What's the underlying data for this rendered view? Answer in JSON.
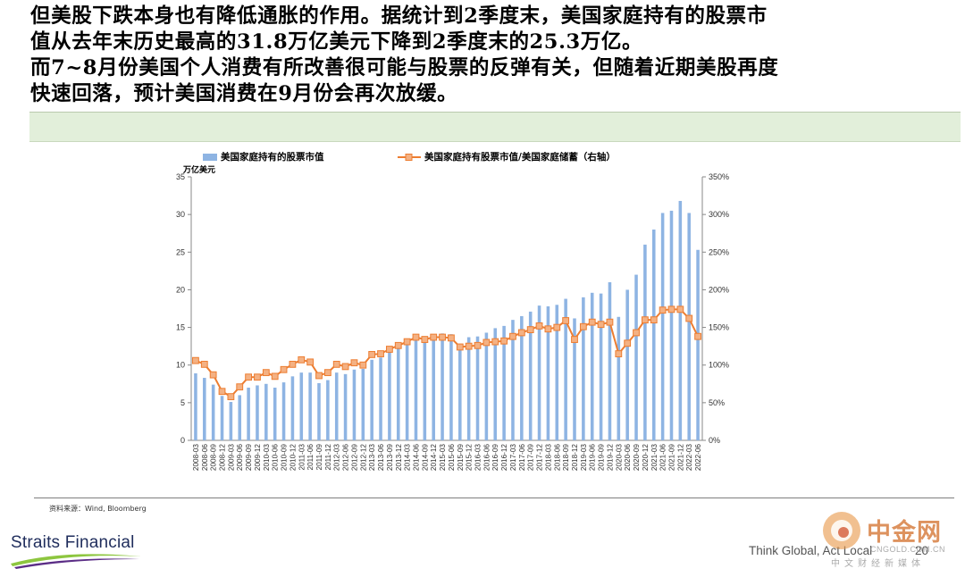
{
  "headline": [
    "但美股下跌本身也有降低通胀的作用。据统计到2季度末，美国家庭持有的股票市",
    "值从去年末历史最高的31.8万亿美元下降到2季度末的25.3万亿。",
    "而7~8月份美国个人消费有所改善很可能与股票的反弹有关，但随着近期美股再度",
    "快速回落，预计美国消费在9月份会再次放缓。"
  ],
  "source": "资料来源：Wind, Bloomberg",
  "footer": {
    "logo": "Straits Financial",
    "slogan": "Think Global, Act Local",
    "page": "20"
  },
  "watermark": {
    "name": "中金网",
    "domain": "CNGOLD.COM.CN",
    "tagline": "中文财经新媒体"
  },
  "colors": {
    "band": "#e2efda",
    "bar": "#8eb4e3",
    "line": "#ed7d31",
    "marker_fill": "#f4b183",
    "brand_navy": "#1f2d5c",
    "brand_green": "#8dc63f",
    "watermark": "#e07a30"
  },
  "chart_data": {
    "type": "bar",
    "title": "",
    "y_unit_label": "万亿美元",
    "legend_position": "top",
    "grid": false,
    "ylim": [
      0,
      35
    ],
    "y_ticks": [
      0,
      5,
      10,
      15,
      20,
      25,
      30,
      35
    ],
    "y2lim": [
      0,
      350
    ],
    "y2_ticks": [
      "0%",
      "50%",
      "100%",
      "150%",
      "200%",
      "250%",
      "300%",
      "350%"
    ],
    "categories": [
      "2008-03",
      "2008-06",
      "2008-09",
      "2008-12",
      "2009-03",
      "2009-06",
      "2009-09",
      "2009-12",
      "2010-03",
      "2010-06",
      "2010-09",
      "2010-12",
      "2011-03",
      "2011-06",
      "2011-09",
      "2011-12",
      "2012-03",
      "2012-06",
      "2012-09",
      "2012-12",
      "2013-03",
      "2013-06",
      "2013-09",
      "2013-12",
      "2014-03",
      "2014-06",
      "2014-09",
      "2014-12",
      "2015-03",
      "2015-06",
      "2015-09",
      "2015-12",
      "2016-03",
      "2016-06",
      "2016-09",
      "2016-12",
      "2017-03",
      "2017-06",
      "2017-09",
      "2017-12",
      "2018-03",
      "2018-06",
      "2018-09",
      "2018-12",
      "2019-03",
      "2019-06",
      "2019-09",
      "2019-12",
      "2020-03",
      "2020-06",
      "2020-09",
      "2020-12",
      "2021-03",
      "2021-06",
      "2021-09",
      "2021-12",
      "2022-03",
      "2022-06"
    ],
    "series": [
      {
        "name": "美国家庭持有的股票市值",
        "type": "bar",
        "axis": "left",
        "values": [
          8.9,
          8.3,
          7.4,
          5.9,
          5.1,
          6.0,
          7.0,
          7.3,
          7.5,
          7.0,
          7.7,
          8.5,
          9.0,
          9.0,
          7.6,
          8.0,
          9.0,
          8.8,
          9.4,
          9.5,
          10.7,
          11.0,
          11.9,
          12.7,
          12.9,
          13.3,
          13.6,
          13.9,
          14.2,
          14.1,
          12.7,
          13.7,
          13.8,
          14.3,
          14.9,
          15.2,
          16.0,
          16.5,
          17.1,
          17.9,
          17.8,
          18.0,
          18.8,
          16.2,
          19.0,
          19.6,
          19.5,
          21.0,
          16.4,
          20.0,
          22.0,
          26.0,
          28.0,
          30.2,
          30.5,
          31.8,
          30.2,
          25.3
        ]
      },
      {
        "name": "美国家庭持有股票市值/美国家庭储蓄（右轴）",
        "type": "line",
        "axis": "right",
        "values": [
          106,
          101,
          87,
          65,
          58,
          71,
          84,
          84,
          90,
          85,
          94,
          101,
          107,
          104,
          86,
          90,
          101,
          98,
          103,
          100,
          114,
          115,
          121,
          126,
          131,
          137,
          134,
          137,
          137,
          136,
          124,
          125,
          126,
          130,
          131,
          132,
          138,
          143,
          147,
          152,
          148,
          150,
          159,
          134,
          151,
          157,
          154,
          157,
          115,
          129,
          143,
          160,
          160,
          173,
          174,
          174,
          162,
          138
        ]
      }
    ]
  }
}
